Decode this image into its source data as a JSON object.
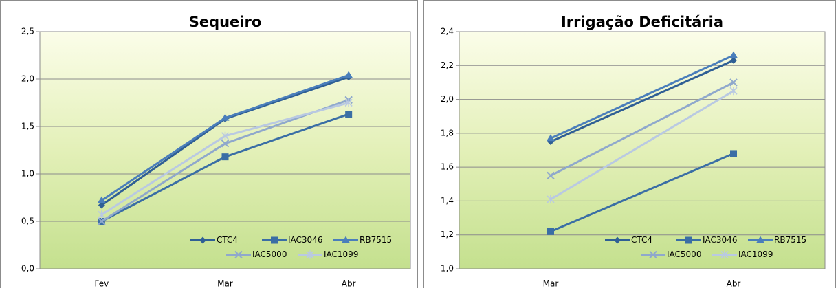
{
  "chart_data": [
    {
      "type": "line",
      "title": "Sequeiro",
      "categories": [
        "Fev",
        "Mar",
        "Abr"
      ],
      "series": [
        {
          "name": "CTC4",
          "color": "#2f5f95",
          "marker": "diamond",
          "values": [
            0.67,
            1.58,
            2.02
          ]
        },
        {
          "name": "IAC3046",
          "color": "#3a6ea5",
          "marker": "square",
          "values": [
            0.5,
            1.18,
            1.63
          ]
        },
        {
          "name": "RB7515",
          "color": "#4a7ebb",
          "marker": "triangle",
          "values": [
            0.72,
            1.59,
            2.04
          ]
        },
        {
          "name": "IAC5000",
          "color": "#8fa8cc",
          "marker": "x",
          "values": [
            0.5,
            1.32,
            1.78
          ]
        },
        {
          "name": "IAC1099",
          "color": "#b9c9e2",
          "marker": "star",
          "values": [
            0.57,
            1.4,
            1.75
          ]
        }
      ],
      "ylim": [
        0,
        2.5
      ],
      "yticks": [
        {
          "value": 0,
          "label": "0,0"
        },
        {
          "value": 0.5,
          "label": "0,5"
        },
        {
          "value": 1,
          "label": "1,0"
        },
        {
          "value": 1.5,
          "label": "1,5"
        },
        {
          "value": 2,
          "label": "2,0"
        },
        {
          "value": 2.5,
          "label": "2,5"
        }
      ],
      "grid": true,
      "legend": "lower right"
    },
    {
      "type": "line",
      "title": "Irrigação Deficitária",
      "categories": [
        "Mar",
        "Abr"
      ],
      "series": [
        {
          "name": "CTC4",
          "color": "#2f5f95",
          "marker": "diamond",
          "values": [
            1.75,
            2.23
          ]
        },
        {
          "name": "IAC3046",
          "color": "#3a6ea5",
          "marker": "square",
          "values": [
            1.22,
            1.68
          ]
        },
        {
          "name": "RB7515",
          "color": "#4a7ebb",
          "marker": "triangle",
          "values": [
            1.77,
            2.26
          ]
        },
        {
          "name": "IAC5000",
          "color": "#8fa8cc",
          "marker": "x",
          "values": [
            1.55,
            2.1
          ]
        },
        {
          "name": "IAC1099",
          "color": "#b9c9e2",
          "marker": "star",
          "values": [
            1.41,
            2.05
          ]
        }
      ],
      "ylim": [
        1,
        2.4
      ],
      "yticks": [
        {
          "value": 1,
          "label": "1,0"
        },
        {
          "value": 1.2,
          "label": "1,2"
        },
        {
          "value": 1.4,
          "label": "1,4"
        },
        {
          "value": 1.6,
          "label": "1,6"
        },
        {
          "value": 1.8,
          "label": "1,8"
        },
        {
          "value": 2,
          "label": "2,0"
        },
        {
          "value": 2.2,
          "label": "2,2"
        },
        {
          "value": 2.4,
          "label": "2,4"
        }
      ],
      "grid": true,
      "legend": "lower right"
    }
  ]
}
